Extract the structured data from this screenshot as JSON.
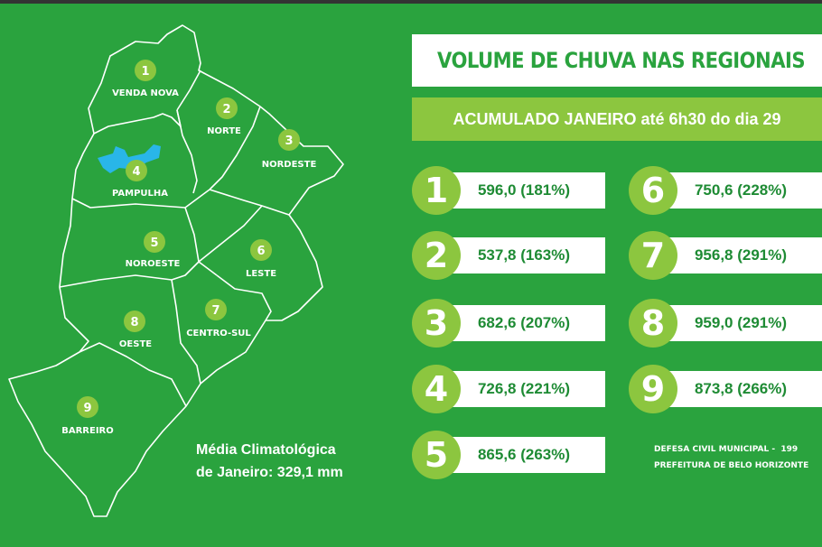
{
  "title": "VOLUME DE CHUVA NAS REGIONAIS",
  "subtitle": {
    "bold_part": "ACUMULADO JANEIRO",
    "rest": " até 6h30 do dia 29"
  },
  "regions": [
    {
      "number": "1",
      "name": "VENDA NOVA",
      "value": "596,0 (181%)"
    },
    {
      "number": "2",
      "name": "NORTE",
      "value": "537,8 (163%)"
    },
    {
      "number": "3",
      "name": "NORDESTE",
      "value": "682,6 (207%)"
    },
    {
      "number": "4",
      "name": "PAMPULHA",
      "value": "726,8 (221%)"
    },
    {
      "number": "5",
      "name": "NOROESTE",
      "value": "865,6 (263%)"
    },
    {
      "number": "6",
      "name": "LESTE",
      "value": "750,6 (228%)"
    },
    {
      "number": "7",
      "name": "CENTRO-SUL",
      "value": "956,8 (291%)"
    },
    {
      "number": "8",
      "name": "OESTE",
      "value": "959,0 (291%)"
    },
    {
      "number": "9",
      "name": "BARREIRO",
      "value": "873,8 (266%)"
    }
  ],
  "media": {
    "line1": "Média Climatológica",
    "line2": "de Janeiro: 329,1 mm"
  },
  "credits": {
    "line1": "DEFESA CIVIL MUNICIPAL -  199",
    "line2": "PREFEITURA DE BELO HORIZONTE"
  },
  "colors": {
    "background": "#2aa33e",
    "accent": "#8cc63f",
    "text_green": "#1e8b34",
    "lake": "#29b6e8"
  },
  "icons": {
    "title": "rain-cloud-icon"
  }
}
